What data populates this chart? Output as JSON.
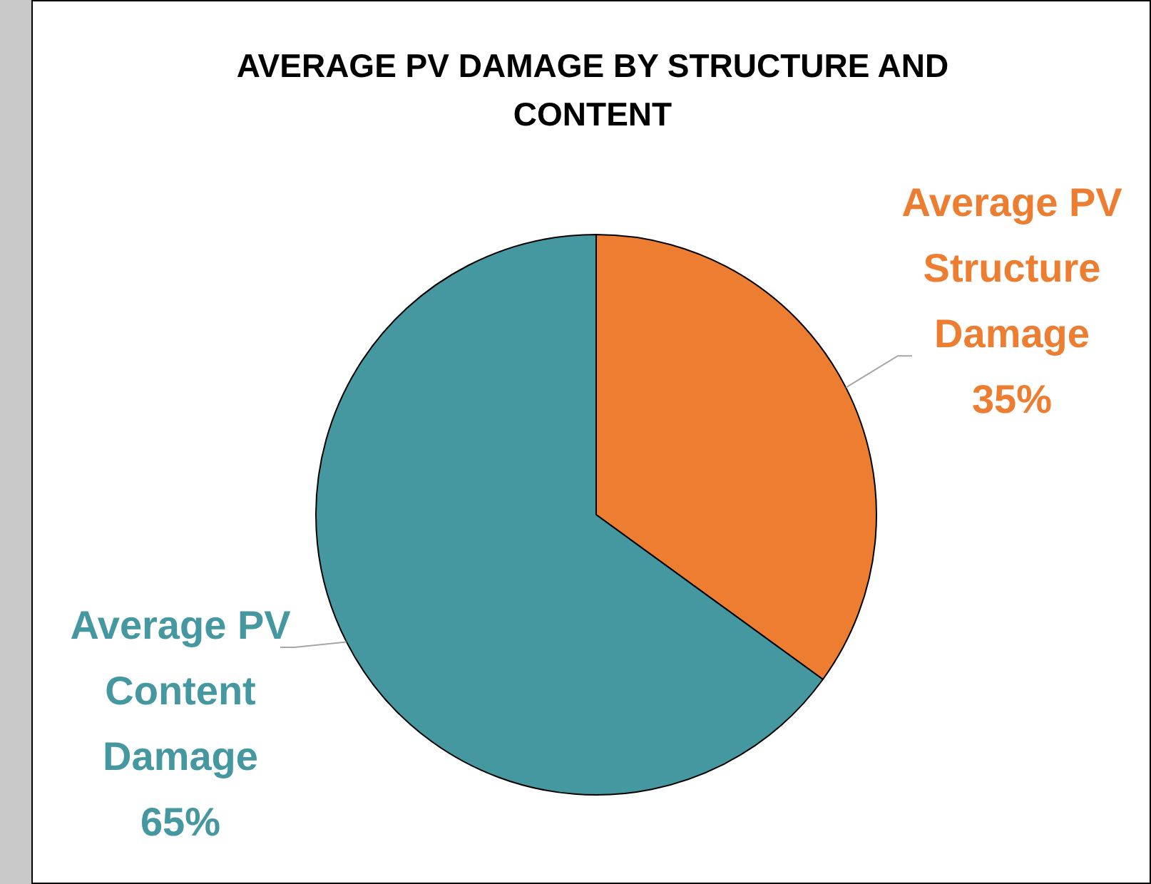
{
  "chart_data": {
    "type": "pie",
    "title": "AVERAGE PV DAMAGE BY STRUCTURE AND CONTENT",
    "categories": [
      "Average PV Structure Damage",
      "Average PV Content Damage"
    ],
    "values": [
      35,
      65
    ],
    "colors": [
      "#ed7d31",
      "#4597a0"
    ],
    "value_labels": [
      "35%",
      "65%"
    ]
  }
}
